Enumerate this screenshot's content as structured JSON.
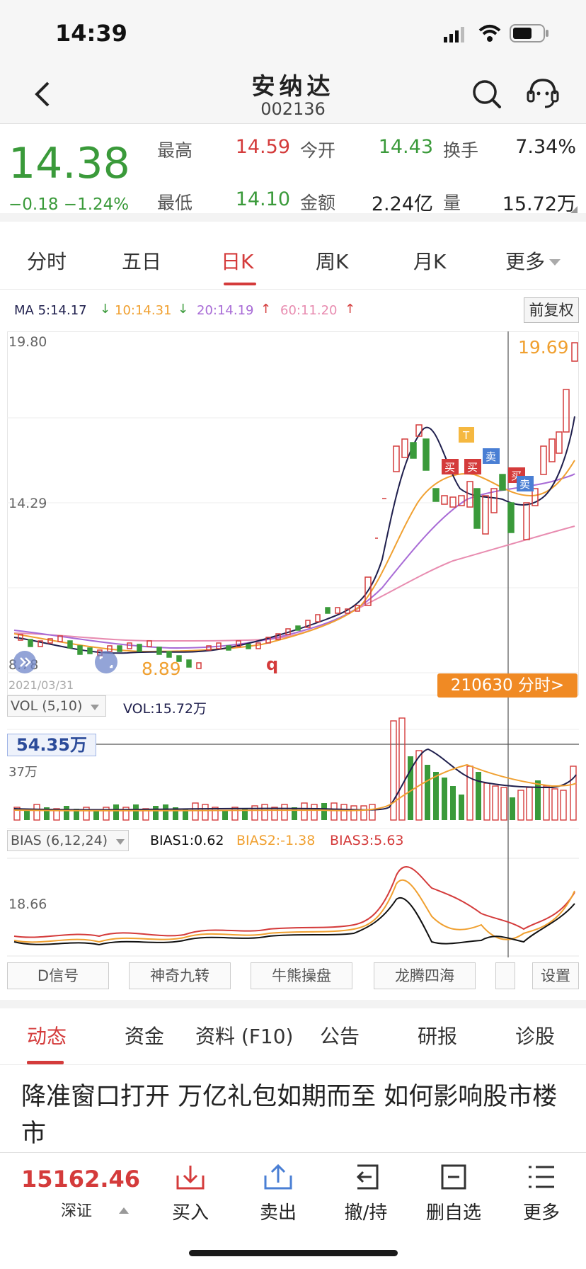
{
  "status": {
    "time": "14:39"
  },
  "header": {
    "title": "安纳达",
    "code": "002136"
  },
  "quote": {
    "price": "14.38",
    "change": "−0.18  −1.24%",
    "labels": {
      "high": "最高",
      "open": "今开",
      "turnover": "换手",
      "low": "最低",
      "amount": "金额",
      "volume": "量"
    },
    "values": {
      "high": "14.59",
      "open": "14.43",
      "turnover": "7.34%",
      "low": "14.10",
      "amount": "2.24亿",
      "volume": "15.72万"
    }
  },
  "ktabs": [
    "分时",
    "五日",
    "日K",
    "周K",
    "月K",
    "更多"
  ],
  "ma": {
    "ma5": "MA 5:14.17",
    "ma10": "10:14.31",
    "ma20": "20:14.19",
    "ma60": "60:11.20",
    "adjust": "前复权"
  },
  "chart": {
    "y_top": "19.80",
    "y_mid": "14.29",
    "y_bottom": "8.78",
    "date": "2021/03/31",
    "high_label": "19.69",
    "low_label": "8.89",
    "q_mark": "q",
    "t_mark": "T",
    "buy": "买",
    "sell": "卖",
    "crosshair_label": "210630 分时>"
  },
  "vol": {
    "selector": "VOL (5,10)",
    "value": "VOL:15.72万",
    "cross_value": "54.35万",
    "axis": "37万"
  },
  "bias": {
    "selector": "BIAS (6,12,24)",
    "b1": "BIAS1:0.62",
    "b2": "BIAS2:-1.38",
    "b3": "BIAS3:5.63",
    "axis": "18.66"
  },
  "signals": [
    "D信号",
    "神奇九转",
    "牛熊操盘",
    "龙腾四海",
    "设置"
  ],
  "ntabs": [
    "动态",
    "资金",
    "资料 (F10)",
    "公告",
    "研报",
    "诊股"
  ],
  "headline": "降准窗口打开 万亿礼包如期而至 如何影响股市楼市",
  "bottom": {
    "index_value": "15162.46",
    "index_name": "深证",
    "buy": "买入",
    "sell": "卖出",
    "cancel": "撤/持",
    "remove": "删自选",
    "more": "更多"
  },
  "colors": {
    "up": "#d43b3b",
    "down": "#3a9a3a",
    "ma5": "#1f1f4d",
    "ma10": "#f0a030",
    "ma20": "#a86bd6",
    "ma60": "#e88cb0",
    "accent": "#f08a24"
  }
}
